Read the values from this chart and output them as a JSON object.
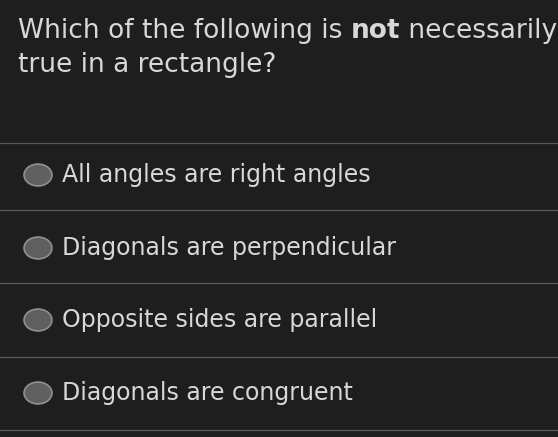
{
  "background_color": "#1e1e1e",
  "title_part1": "Which of the following is ",
  "title_bold": "not",
  "title_part2": " necessarily",
  "title_line2": "true in a rectangle?",
  "options": [
    "All angles are right angles",
    "Diagonals are perpendicular",
    "Opposite sides are parallel",
    "Diagonals are congruent"
  ],
  "text_color": "#d8d8d8",
  "circle_fill": "#606060",
  "circle_edge": "#909090",
  "divider_color": "#666666",
  "title_fontsize": 19,
  "option_fontsize": 17
}
